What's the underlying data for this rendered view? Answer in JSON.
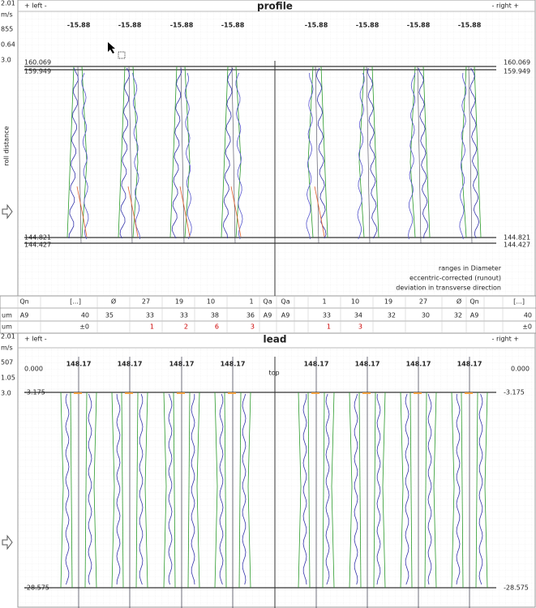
{
  "profile": {
    "left_scale": [
      "2.01",
      "m/s",
      "855",
      "0.64",
      "3.0"
    ],
    "header": {
      "left": "+ left -",
      "title": "profile",
      "right": "- right +"
    },
    "top_values": [
      "-15.88",
      "-15.88",
      "-15.88",
      "-15.88",
      "-15.88",
      "-15.88",
      "-15.88",
      "-15.88"
    ],
    "axis_label": "roll distance",
    "levels_left": [
      "160.069",
      "159.949",
      "144.821",
      "144.427"
    ],
    "levels_right": [
      "160.069",
      "159.949",
      "144.821",
      "144.427"
    ],
    "notes": [
      "ranges in Diameter",
      "eccentric-corrected (runout)",
      "deviation in transverse direction"
    ]
  },
  "table": {
    "rows": [
      [
        "Qn",
        "[...]",
        "Ø",
        "27",
        "19",
        "10",
        "1",
        "Qa",
        "Qa",
        "1",
        "10",
        "19",
        "27",
        "Ø",
        "Qn",
        "[...]"
      ],
      [
        "um",
        "A9",
        "40",
        "35",
        "33",
        "33",
        "38",
        "36",
        "A9",
        "A9",
        "33",
        "34",
        "32",
        "30",
        "32",
        "A9",
        "40"
      ],
      [
        "um",
        "±0",
        "1",
        "2",
        "6",
        "3",
        "1",
        "3",
        "±0"
      ]
    ]
  },
  "lead": {
    "left_scale": [
      "2.01",
      "m/s",
      "507",
      "1.05",
      "3.0"
    ],
    "header": {
      "left": "+ left -",
      "title": "lead",
      "right": "- right +"
    },
    "top_values": [
      "148.17",
      "148.17",
      "148.17",
      "148.17",
      "148.17",
      "148.17",
      "148.17",
      "148.17"
    ],
    "top_left": "0.000",
    "top_right": "0.000",
    "top_label": "top",
    "levels_left": [
      "-3.175",
      "-28.575"
    ],
    "levels_right": [
      "-3.175",
      "-28.575"
    ]
  }
}
